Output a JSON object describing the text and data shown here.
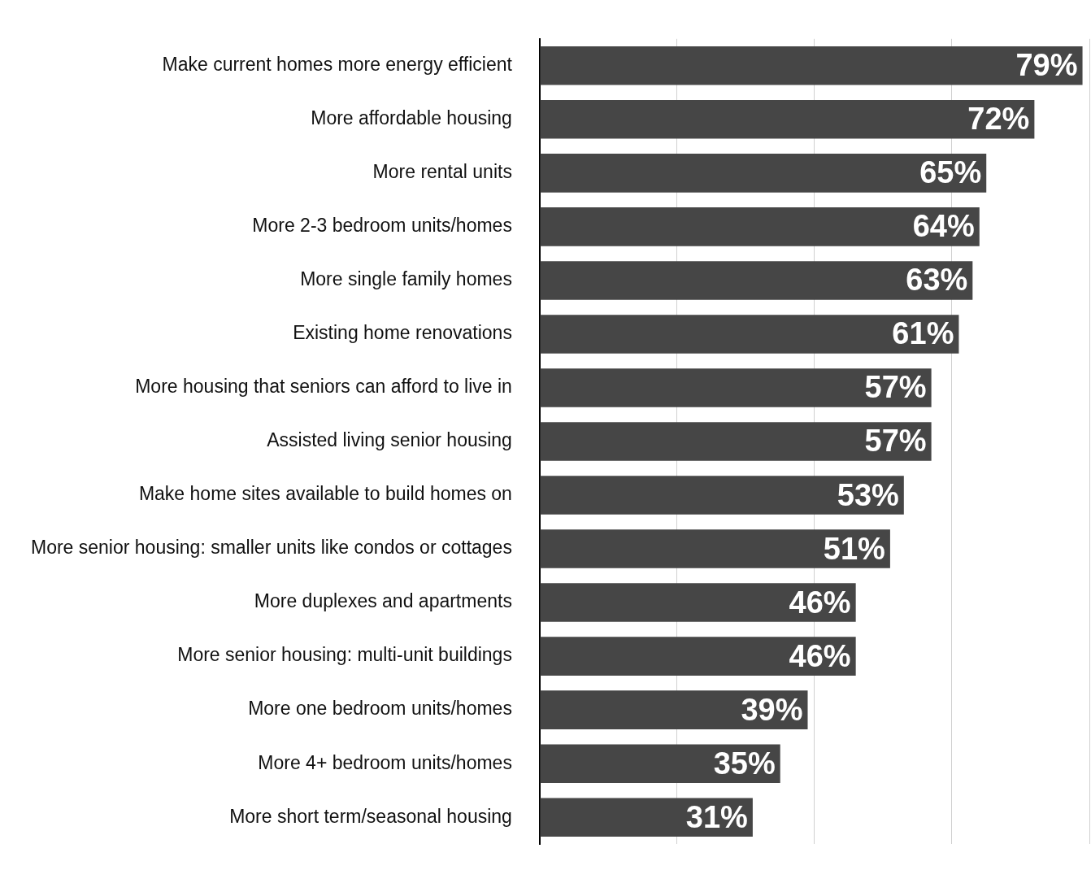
{
  "chart_data": {
    "type": "bar",
    "orientation": "horizontal",
    "categories": [
      "Make current homes more energy efficient",
      "More affordable housing",
      "More rental units",
      "More 2-3 bedroom units/homes",
      "More single family homes",
      "Existing home renovations",
      "More housing that seniors can afford to live in",
      "Assisted living senior housing",
      "Make home sites available to build homes on",
      "More senior housing: smaller units like condos or cottages",
      "More duplexes and apartments",
      "More senior housing: multi-unit buildings",
      "More one bedroom units/homes",
      "More 4+ bedroom units/homes",
      "More short term/seasonal housing"
    ],
    "values": [
      79,
      72,
      65,
      64,
      63,
      61,
      57,
      57,
      53,
      51,
      46,
      46,
      39,
      35,
      31
    ],
    "value_labels": [
      "79%",
      "72%",
      "65%",
      "64%",
      "63%",
      "61%",
      "57%",
      "57%",
      "53%",
      "51%",
      "46%",
      "46%",
      "39%",
      "35%",
      "31%"
    ],
    "color": "#464646",
    "xlim": [
      0,
      80
    ],
    "xticks": [
      {
        "value": 0,
        "label": null
      },
      {
        "value": 20,
        "label": null
      },
      {
        "value": 40,
        "label": null
      },
      {
        "value": 60,
        "label": null
      },
      {
        "value": 80,
        "label": null
      }
    ],
    "grid": "x",
    "tick_labels": "y",
    "legend": false
  }
}
